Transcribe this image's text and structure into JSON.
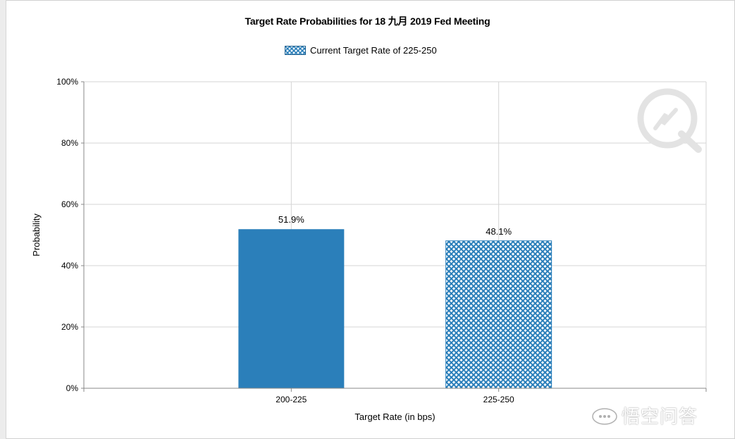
{
  "chart_data": {
    "type": "bar",
    "title": "Target Rate Probabilities for 18 九月 2019 Fed Meeting",
    "legend": [
      "Current Target Rate of 225-250"
    ],
    "legend_position": "top-center",
    "categories": [
      "200-225",
      "225-250"
    ],
    "values": [
      51.9,
      48.1
    ],
    "value_labels": [
      "51.9%",
      "48.1%"
    ],
    "bar_styles": [
      "solid",
      "crosshatch"
    ],
    "xlabel": "Target Rate (in bps)",
    "ylabel": "Probability",
    "ylim": [
      0,
      100
    ],
    "yticks": [
      "0%",
      "20%",
      "40%",
      "60%",
      "80%",
      "100%"
    ],
    "grid": true,
    "bar_color": "#2b7fba",
    "hatch_bg": "#ffffff",
    "hatch_line": "#2b7fba"
  },
  "watermark": {
    "text": "悟空问答"
  }
}
